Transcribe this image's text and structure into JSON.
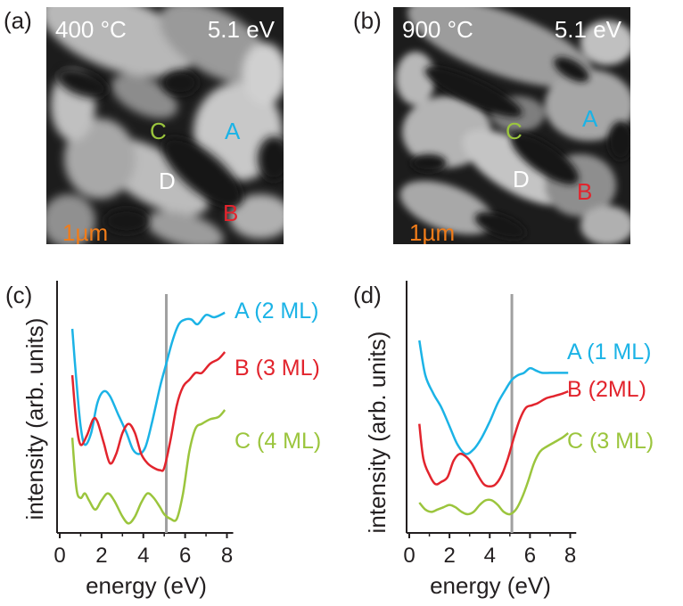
{
  "colors": {
    "A": "#1bb3e6",
    "B": "#e2242d",
    "C": "#9bc53d",
    "D": "#ffffff",
    "scalebar": "#f07c1a",
    "marker": "#a0a0a0",
    "axis": "#231f20"
  },
  "panels": {
    "a": {
      "label": "(a)",
      "temperature": "400 °C",
      "energy": "5.1 eV",
      "scalebar": "1µm",
      "regions": {
        "A": "A",
        "B": "B",
        "C": "C",
        "D": "D"
      }
    },
    "b": {
      "label": "(b)",
      "temperature": "900 °C",
      "energy": "5.1 eV",
      "scalebar": "1µm",
      "regions": {
        "A": "A",
        "B": "B",
        "C": "C",
        "D": "D"
      }
    }
  },
  "chart_data": [
    {
      "panel": "(c)",
      "type": "line",
      "xlabel": "energy (eV)",
      "ylabel": "intensity (arb. units)",
      "xlim": [
        0,
        8.5
      ],
      "xticks": [
        0,
        2,
        4,
        6,
        8
      ],
      "marker_x": 5.1,
      "series": [
        {
          "name": "A (2 ML)",
          "color": "#1bb3e6",
          "x": [
            0.6,
            0.8,
            1.0,
            1.2,
            1.5,
            1.8,
            2.1,
            2.4,
            2.8,
            3.2,
            3.5,
            3.8,
            4.1,
            4.4,
            4.8,
            5.1,
            5.4,
            5.7,
            6.0,
            6.3,
            6.6,
            7.0,
            7.4,
            7.9
          ],
          "y": [
            85,
            62,
            43,
            35,
            40,
            53,
            58,
            56,
            48,
            40,
            33,
            31,
            34,
            44,
            60,
            70,
            80,
            87,
            89,
            89,
            87,
            91,
            90,
            92
          ]
        },
        {
          "name": "B (3 ML)",
          "color": "#e2242d",
          "x": [
            0.6,
            0.8,
            1.0,
            1.3,
            1.6,
            1.8,
            2.1,
            2.4,
            2.7,
            3.0,
            3.3,
            3.6,
            3.9,
            4.2,
            4.5,
            4.8,
            5.0,
            5.3,
            5.6,
            5.9,
            6.2,
            6.5,
            6.8,
            7.2,
            7.6,
            7.9
          ],
          "y": [
            65,
            44,
            35,
            39,
            46,
            45,
            36,
            27,
            31,
            40,
            44,
            40,
            31,
            27,
            25,
            24,
            25,
            37,
            52,
            60,
            63,
            66,
            66,
            70,
            72,
            75
          ]
        },
        {
          "name": "C (4 ML)",
          "color": "#9bc53d",
          "x": [
            0.6,
            0.8,
            1.0,
            1.2,
            1.4,
            1.7,
            2.0,
            2.3,
            2.6,
            3.0,
            3.3,
            3.6,
            3.9,
            4.2,
            4.5,
            4.8,
            5.0,
            5.3,
            5.6,
            5.9,
            6.2,
            6.5,
            6.8,
            7.2,
            7.6,
            7.9
          ],
          "y": [
            38,
            16,
            12,
            14,
            11,
            7,
            11,
            14,
            11,
            4,
            1,
            4,
            10,
            14,
            12,
            8,
            5,
            3,
            3,
            14,
            32,
            42,
            44,
            46,
            47,
            50
          ]
        }
      ]
    },
    {
      "panel": "(d)",
      "type": "line",
      "xlabel": "energy (eV)",
      "ylabel": "intensity (arb. units)",
      "xlim": [
        0,
        8.5
      ],
      "xticks": [
        0,
        2,
        4,
        6,
        8
      ],
      "marker_x": 5.1,
      "series": [
        {
          "name": "A (1 ML)",
          "color": "#1bb3e6",
          "x": [
            0.5,
            0.8,
            1.2,
            1.6,
            2.0,
            2.4,
            2.8,
            3.2,
            3.6,
            4.0,
            4.4,
            4.8,
            5.1,
            5.4,
            5.7,
            6.0,
            6.3,
            6.6,
            7.0,
            7.4,
            7.9
          ],
          "y": [
            80,
            65,
            57,
            51,
            43,
            35,
            31,
            33,
            38,
            45,
            53,
            59,
            63,
            65,
            66,
            68,
            67,
            66,
            66,
            66,
            66
          ]
        },
        {
          "name": "B (2ML)",
          "color": "#e2242d",
          "x": [
            0.5,
            0.7,
            1.0,
            1.3,
            1.6,
            1.9,
            2.2,
            2.5,
            2.8,
            3.1,
            3.4,
            3.7,
            4.0,
            4.3,
            4.6,
            4.9,
            5.2,
            5.5,
            5.8,
            6.1,
            6.4,
            6.8,
            7.2,
            7.6,
            7.9
          ],
          "y": [
            44,
            29,
            22,
            18,
            19,
            21,
            28,
            31,
            30,
            27,
            22,
            18,
            17,
            18,
            22,
            29,
            38,
            46,
            51,
            52,
            53,
            55,
            56,
            57,
            58
          ]
        },
        {
          "name": "C (3 ML)",
          "color": "#9bc53d",
          "x": [
            0.5,
            0.8,
            1.1,
            1.4,
            1.7,
            2.0,
            2.3,
            2.6,
            2.9,
            3.2,
            3.5,
            3.8,
            4.1,
            4.4,
            4.7,
            5.0,
            5.3,
            5.6,
            5.9,
            6.2,
            6.5,
            6.8,
            7.2,
            7.6,
            7.9
          ],
          "y": [
            10,
            7,
            6,
            7,
            8,
            9,
            8,
            6,
            5,
            6,
            9,
            11,
            11,
            9,
            6,
            5,
            7,
            12,
            19,
            27,
            32,
            34,
            36,
            38,
            40
          ]
        }
      ]
    }
  ]
}
